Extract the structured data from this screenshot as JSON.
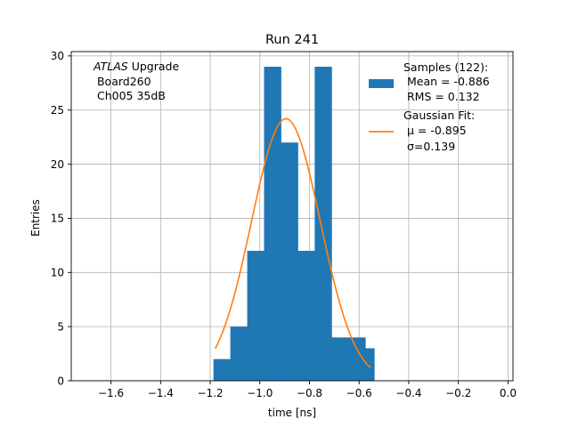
{
  "chart_data": {
    "type": "bar",
    "title": "Run 241",
    "xlabel": "time [ns]",
    "ylabel": "Entries",
    "xlim": [
      -1.76,
      0.02
    ],
    "ylim": [
      0,
      30.4
    ],
    "xticks": [
      -1.6,
      -1.4,
      -1.2,
      -1.0,
      -0.8,
      -0.6,
      -0.4,
      -0.2,
      0.0
    ],
    "xtick_labels": [
      "−1.6",
      "−1.4",
      "−1.2",
      "−1.0",
      "−0.8",
      "−0.6",
      "−0.4",
      "−0.2",
      "0.0"
    ],
    "yticks": [
      0,
      5,
      10,
      15,
      20,
      25,
      30
    ],
    "ytick_labels": [
      "0",
      "5",
      "10",
      "15",
      "20",
      "25",
      "30"
    ],
    "grid": true,
    "bin_edges": [
      -1.187,
      -1.119,
      -1.051,
      -0.983,
      -0.915,
      -0.847,
      -0.779,
      -0.711,
      -0.643,
      -0.575,
      -0.539
    ],
    "values": [
      2,
      5,
      12,
      29,
      22,
      12,
      29,
      4,
      4,
      3
    ],
    "bar_color": "#1f77b4",
    "fit": {
      "mu": -0.895,
      "sigma": 0.139,
      "amplitude": 24.2,
      "x_start": -1.18,
      "x_end": -0.555,
      "color": "#ff7f0e"
    },
    "annotation_lines": [
      "ATLAS Upgrade",
      " Board260",
      " Ch005 35dB"
    ],
    "annotation_italic_word": "ATLAS",
    "legend_placement": "top-right",
    "legend": [
      {
        "lines": [
          "Samples (122):",
          " Mean = -0.886",
          " RMS = 0.132"
        ],
        "kind": "patch",
        "color": "#1f77b4"
      },
      {
        "lines": [
          "Gaussian Fit:",
          " μ = -0.895",
          " σ=0.139"
        ],
        "kind": "line",
        "color": "#ff7f0e"
      }
    ]
  }
}
